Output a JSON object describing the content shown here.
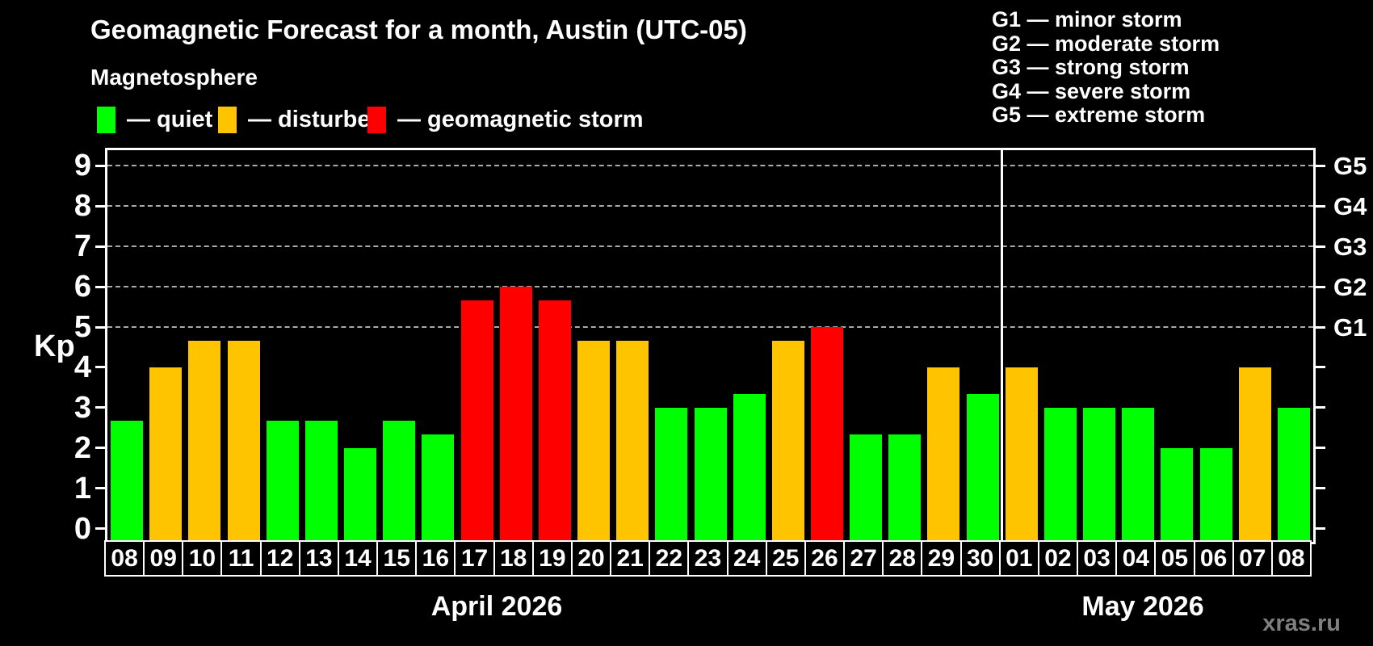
{
  "title": "Geomagnetic Forecast for a month, Austin (UTC-05)",
  "legend": {
    "title": "Magnetosphere",
    "items": [
      {
        "name": "quiet",
        "label": "— quiet",
        "color": "#00ff00"
      },
      {
        "name": "disturbed",
        "label": "— disturbed",
        "color": "#ffc400"
      },
      {
        "name": "storm",
        "label": "— geomagnetic storm",
        "color": "#ff0000"
      }
    ]
  },
  "g_legend": {
    "items": [
      {
        "label": "G1 — minor storm"
      },
      {
        "label": "G2 — moderate storm"
      },
      {
        "label": "G3 — strong storm"
      },
      {
        "label": "G4 — severe storm"
      },
      {
        "label": "G5 — extreme storm"
      }
    ]
  },
  "watermark": "xras.ru",
  "chart_data": {
    "type": "bar",
    "title": "Geomagnetic Forecast for a month, Austin (UTC-05)",
    "ylabel": "Kp",
    "ylim": [
      0,
      9
    ],
    "yticks": [
      0,
      1,
      2,
      3,
      4,
      5,
      6,
      7,
      8,
      9
    ],
    "gridlines_at": [
      5,
      6,
      7,
      8,
      9
    ],
    "grid": "dashed horizontal at G-storm levels only",
    "legend_position": "top",
    "right_axis": [
      {
        "label": "G1",
        "kp": 5
      },
      {
        "label": "G2",
        "kp": 6
      },
      {
        "label": "G3",
        "kp": 7
      },
      {
        "label": "G4",
        "kp": 8
      },
      {
        "label": "G5",
        "kp": 9
      }
    ],
    "status_colors": {
      "quiet": "#00ff00",
      "disturbed": "#ffc400",
      "storm": "#ff0000"
    },
    "months": [
      {
        "label": "April 2026",
        "days": 23
      },
      {
        "label": "May 2026",
        "days": 8
      }
    ],
    "bars": [
      {
        "day": "08",
        "month": "April",
        "kp": 2.67,
        "status": "quiet"
      },
      {
        "day": "09",
        "month": "April",
        "kp": 4.0,
        "status": "disturbed"
      },
      {
        "day": "10",
        "month": "April",
        "kp": 4.67,
        "status": "disturbed"
      },
      {
        "day": "11",
        "month": "April",
        "kp": 4.67,
        "status": "disturbed"
      },
      {
        "day": "12",
        "month": "April",
        "kp": 2.67,
        "status": "quiet"
      },
      {
        "day": "13",
        "month": "April",
        "kp": 2.67,
        "status": "quiet"
      },
      {
        "day": "14",
        "month": "April",
        "kp": 2.0,
        "status": "quiet"
      },
      {
        "day": "15",
        "month": "April",
        "kp": 2.67,
        "status": "quiet"
      },
      {
        "day": "16",
        "month": "April",
        "kp": 2.33,
        "status": "quiet"
      },
      {
        "day": "17",
        "month": "April",
        "kp": 5.67,
        "status": "storm"
      },
      {
        "day": "18",
        "month": "April",
        "kp": 6.0,
        "status": "storm"
      },
      {
        "day": "19",
        "month": "April",
        "kp": 5.67,
        "status": "storm"
      },
      {
        "day": "20",
        "month": "April",
        "kp": 4.67,
        "status": "disturbed"
      },
      {
        "day": "21",
        "month": "April",
        "kp": 4.67,
        "status": "disturbed"
      },
      {
        "day": "22",
        "month": "April",
        "kp": 3.0,
        "status": "quiet"
      },
      {
        "day": "23",
        "month": "April",
        "kp": 3.0,
        "status": "quiet"
      },
      {
        "day": "24",
        "month": "April",
        "kp": 3.33,
        "status": "quiet"
      },
      {
        "day": "25",
        "month": "April",
        "kp": 4.67,
        "status": "disturbed"
      },
      {
        "day": "26",
        "month": "April",
        "kp": 5.0,
        "status": "storm"
      },
      {
        "day": "27",
        "month": "April",
        "kp": 2.33,
        "status": "quiet"
      },
      {
        "day": "28",
        "month": "April",
        "kp": 2.33,
        "status": "quiet"
      },
      {
        "day": "29",
        "month": "April",
        "kp": 4.0,
        "status": "disturbed"
      },
      {
        "day": "30",
        "month": "April",
        "kp": 3.33,
        "status": "quiet"
      },
      {
        "day": "01",
        "month": "May",
        "kp": 4.0,
        "status": "disturbed"
      },
      {
        "day": "02",
        "month": "May",
        "kp": 3.0,
        "status": "quiet"
      },
      {
        "day": "03",
        "month": "May",
        "kp": 3.0,
        "status": "quiet"
      },
      {
        "day": "04",
        "month": "May",
        "kp": 3.0,
        "status": "quiet"
      },
      {
        "day": "05",
        "month": "May",
        "kp": 2.0,
        "status": "quiet"
      },
      {
        "day": "06",
        "month": "May",
        "kp": 2.0,
        "status": "quiet"
      },
      {
        "day": "07",
        "month": "May",
        "kp": 4.0,
        "status": "disturbed"
      },
      {
        "day": "08",
        "month": "May",
        "kp": 3.0,
        "status": "quiet"
      }
    ]
  }
}
